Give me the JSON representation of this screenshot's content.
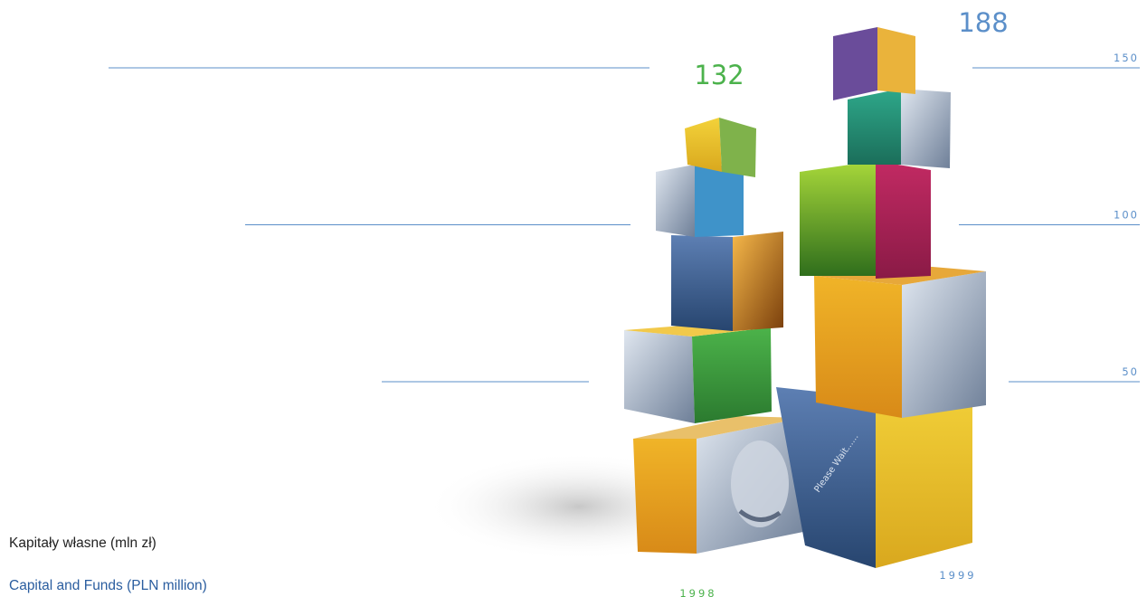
{
  "chart_data": {
    "type": "bar",
    "title_pl": "Kapitały własne (mln zł)",
    "title_en": "Capital and Funds (PLN million)",
    "categories": [
      "1998",
      "1999"
    ],
    "values": [
      132,
      188
    ],
    "value_labels": [
      "132",
      "188"
    ],
    "yticks": [
      "50",
      "100",
      "150"
    ],
    "ylim": [
      0,
      200
    ],
    "grid": true,
    "colors": {
      "value_1998": "#4cb24c",
      "value_1999": "#5b8fc9",
      "gridline": "#5b8fc9",
      "year_1998": "#4cb24c",
      "year_1999": "#5b8fc9"
    }
  }
}
